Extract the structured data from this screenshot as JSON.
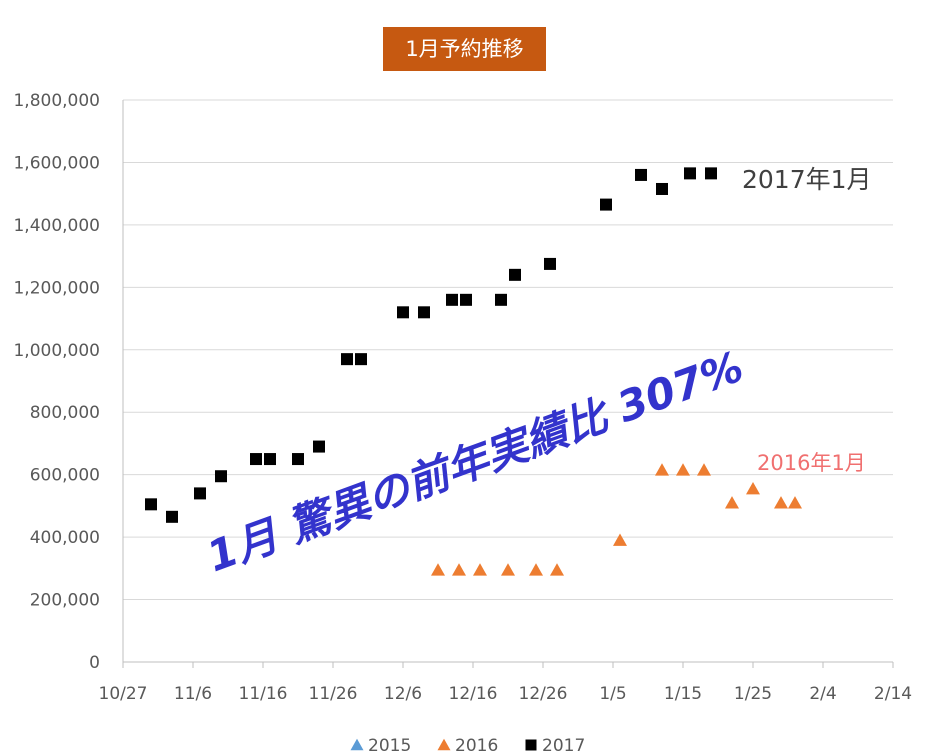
{
  "chart_data": {
    "type": "scatter",
    "title": "1月予約推移",
    "xlabel": "",
    "ylabel": "",
    "ylim": [
      0,
      1800000
    ],
    "yticks": [
      {
        "value": 0,
        "label": "0"
      },
      {
        "value": 200000,
        "label": "200,000"
      },
      {
        "value": 400000,
        "label": "400,000"
      },
      {
        "value": 600000,
        "label": "600,000"
      },
      {
        "value": 800000,
        "label": "800,000"
      },
      {
        "value": 1000000,
        "label": "1,000,000"
      },
      {
        "value": 1200000,
        "label": "1,200,000"
      },
      {
        "value": 1400000,
        "label": "1,400,000"
      },
      {
        "value": 1600000,
        "label": "1,600,000"
      },
      {
        "value": 1800000,
        "label": "1,800,000"
      }
    ],
    "xlim": [
      "10/27",
      "2/14"
    ],
    "xticks": [
      "10/27",
      "11/6",
      "11/16",
      "11/26",
      "12/6",
      "12/16",
      "12/26",
      "1/5",
      "1/15",
      "1/25",
      "2/4",
      "2/14"
    ],
    "grid": "horizontal",
    "legend_position": "bottom",
    "series": [
      {
        "name": "2015",
        "marker": "triangle",
        "color": "#5b9bd5",
        "points": []
      },
      {
        "name": "2016",
        "marker": "triangle",
        "color": "#ed7d31",
        "points": [
          [
            "12/11",
            295000
          ],
          [
            "12/14",
            295000
          ],
          [
            "12/17",
            295000
          ],
          [
            "12/21",
            295000
          ],
          [
            "12/25",
            295000
          ],
          [
            "12/28",
            295000
          ],
          [
            "1/6",
            390000
          ],
          [
            "1/12",
            615000
          ],
          [
            "1/15",
            615000
          ],
          [
            "1/18",
            615000
          ],
          [
            "1/22",
            510000
          ],
          [
            "1/25",
            555000
          ],
          [
            "1/29",
            510000
          ],
          [
            "1/31",
            510000
          ]
        ]
      },
      {
        "name": "2017",
        "marker": "square",
        "color": "#000000",
        "points": [
          [
            "10/31",
            505000
          ],
          [
            "11/3",
            465000
          ],
          [
            "11/7",
            540000
          ],
          [
            "11/10",
            595000
          ],
          [
            "11/15",
            650000
          ],
          [
            "11/17",
            650000
          ],
          [
            "11/21",
            650000
          ],
          [
            "11/24",
            690000
          ],
          [
            "11/28",
            970000
          ],
          [
            "11/30",
            970000
          ],
          [
            "12/6",
            1120000
          ],
          [
            "12/9",
            1120000
          ],
          [
            "12/13",
            1160000
          ],
          [
            "12/15",
            1160000
          ],
          [
            "12/20",
            1160000
          ],
          [
            "12/22",
            1240000
          ],
          [
            "12/27",
            1275000
          ],
          [
            "1/4",
            1465000
          ],
          [
            "1/9",
            1560000
          ],
          [
            "1/12",
            1515000
          ],
          [
            "1/16",
            1565000
          ],
          [
            "1/19",
            1565000
          ]
        ]
      }
    ],
    "annotations": {
      "label_2017": "2017年1月",
      "label_2016": "2016年1月",
      "headline": "1月 驚異の前年実績比 307%"
    }
  }
}
